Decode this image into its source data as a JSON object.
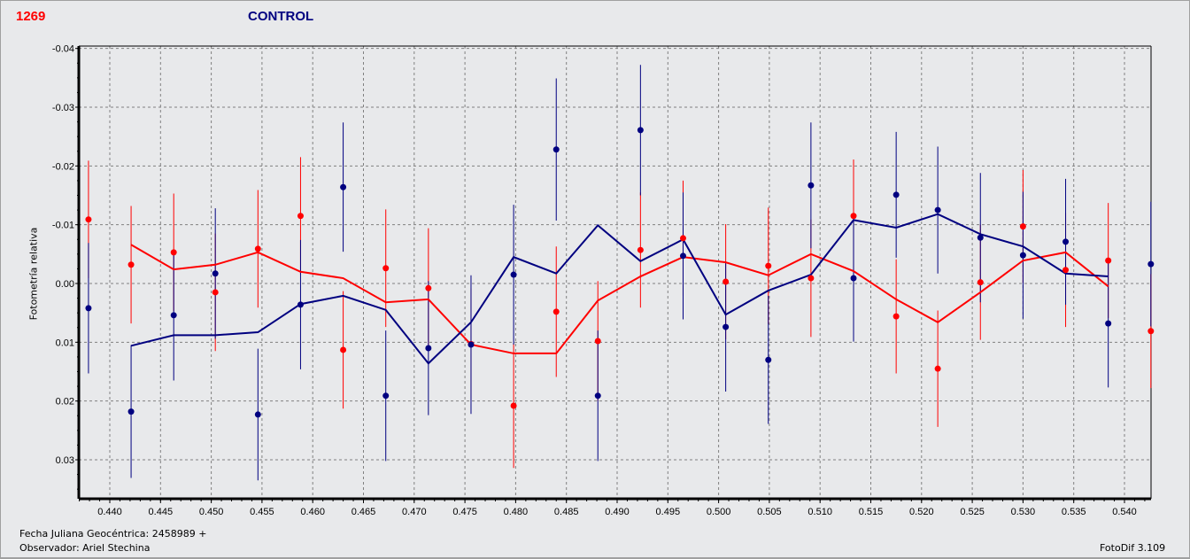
{
  "header": {
    "object_id": "1269",
    "title": "CONTROL",
    "colors": {
      "object_id": "#ff0000",
      "title": "#000080"
    }
  },
  "footer": {
    "jd_label": "Fecha Juliana Geocéntrica: 2458989 +",
    "observer_label": "Observador: Ariel Stechina",
    "software": "FotoDif 3.109"
  },
  "chart_data": {
    "type": "scatter",
    "title": "CONTROL",
    "xlabel": "Fecha Juliana Geocéntrica: 2458989 +",
    "ylabel": "Fotometría relativa",
    "xlim": [
      0.4374,
      0.5429
    ],
    "ylim": [
      0.0365,
      -0.04
    ],
    "y_inverted": true,
    "grid": true,
    "grid_style": "dashed",
    "x_ticks": [
      "0.440",
      "0.445",
      "0.450",
      "0.455",
      "0.460",
      "0.465",
      "0.470",
      "0.475",
      "0.480",
      "0.485",
      "0.490",
      "0.495",
      "0.500",
      "0.505",
      "0.510",
      "0.515",
      "0.520",
      "0.525",
      "0.530",
      "0.535",
      "0.540"
    ],
    "y_ticks": [
      "-0.04",
      "-0.03",
      "-0.02",
      "-0.01",
      "0.00",
      "0.01",
      "0.02",
      "0.03"
    ],
    "x": [
      0.4379,
      0.4421,
      0.4463,
      0.4504,
      0.4546,
      0.4588,
      0.463,
      0.4672,
      0.4714,
      0.4756,
      0.4798,
      0.484,
      0.4881,
      0.4923,
      0.4965,
      0.5007,
      0.5049,
      0.5091,
      0.5133,
      0.5175,
      0.5216,
      0.5258,
      0.53,
      0.5342,
      0.5384,
      0.5426
    ],
    "series": [
      {
        "name": "red",
        "color": "#ff0000",
        "values": [
          -0.0109,
          -0.0032,
          -0.0053,
          0.0015,
          -0.0059,
          -0.0115,
          0.0113,
          -0.0026,
          0.0008,
          0.0103,
          0.0208,
          0.0048,
          0.0098,
          -0.0057,
          -0.0077,
          -0.0003,
          -0.003,
          -0.0009,
          -0.0115,
          0.0056,
          0.0145,
          -0.0002,
          -0.0097,
          -0.0023,
          -0.0039,
          0.0081
        ],
        "err": [
          0.01,
          0.01,
          0.01,
          0.01,
          0.01,
          0.01,
          0.01,
          0.01,
          0.0102,
          0.0095,
          0.0106,
          0.0111,
          0.0102,
          0.0098,
          0.0098,
          0.0098,
          0.0099,
          0.01,
          0.0096,
          0.0097,
          0.0099,
          0.0098,
          0.0096,
          0.0097,
          0.0098,
          0.0097
        ],
        "smoothed": {
          "x_start_index": 1,
          "values": [
            -0.0066,
            -0.0024,
            -0.0032,
            -0.0053,
            -0.002,
            -0.0009,
            0.0032,
            0.0027,
            0.0104,
            0.0119,
            0.0119,
            0.0029,
            -0.0012,
            -0.0045,
            -0.0036,
            -0.0014,
            -0.005,
            -0.0021,
            0.0027,
            0.0066,
            0.0015,
            -0.0039,
            -0.0053,
            0.0005
          ]
        }
      },
      {
        "name": "blue",
        "color": "#000080",
        "values": [
          0.0042,
          0.0218,
          0.0054,
          -0.0017,
          0.0223,
          0.0036,
          -0.0164,
          0.0191,
          0.011,
          0.0104,
          -0.0015,
          -0.0228,
          0.0191,
          -0.0261,
          -0.0047,
          0.0074,
          0.013,
          -0.0167,
          -0.0009,
          -0.0151,
          -0.0125,
          -0.0078,
          -0.0048,
          -0.0071,
          0.0068,
          -0.0033
        ],
        "err": [
          0.0111,
          0.0113,
          0.0111,
          0.0111,
          0.0112,
          0.011,
          0.011,
          0.0111,
          0.0114,
          0.0118,
          0.0119,
          0.0121,
          0.0111,
          0.0111,
          0.0108,
          0.011,
          0.0109,
          0.0107,
          0.0108,
          0.0107,
          0.0108,
          0.011,
          0.0108,
          0.0107,
          0.0109,
          0.0106
        ],
        "smoothed": {
          "x_start_index": 1,
          "values": [
            0.0106,
            0.0088,
            0.0088,
            0.0083,
            0.0035,
            0.0021,
            0.0045,
            0.0136,
            0.0066,
            -0.0045,
            -0.0017,
            -0.0099,
            -0.0038,
            -0.0075,
            0.0053,
            0.0012,
            -0.0015,
            -0.0108,
            -0.0095,
            -0.0118,
            -0.0084,
            -0.0063,
            -0.0017,
            -0.0012
          ]
        }
      }
    ]
  }
}
